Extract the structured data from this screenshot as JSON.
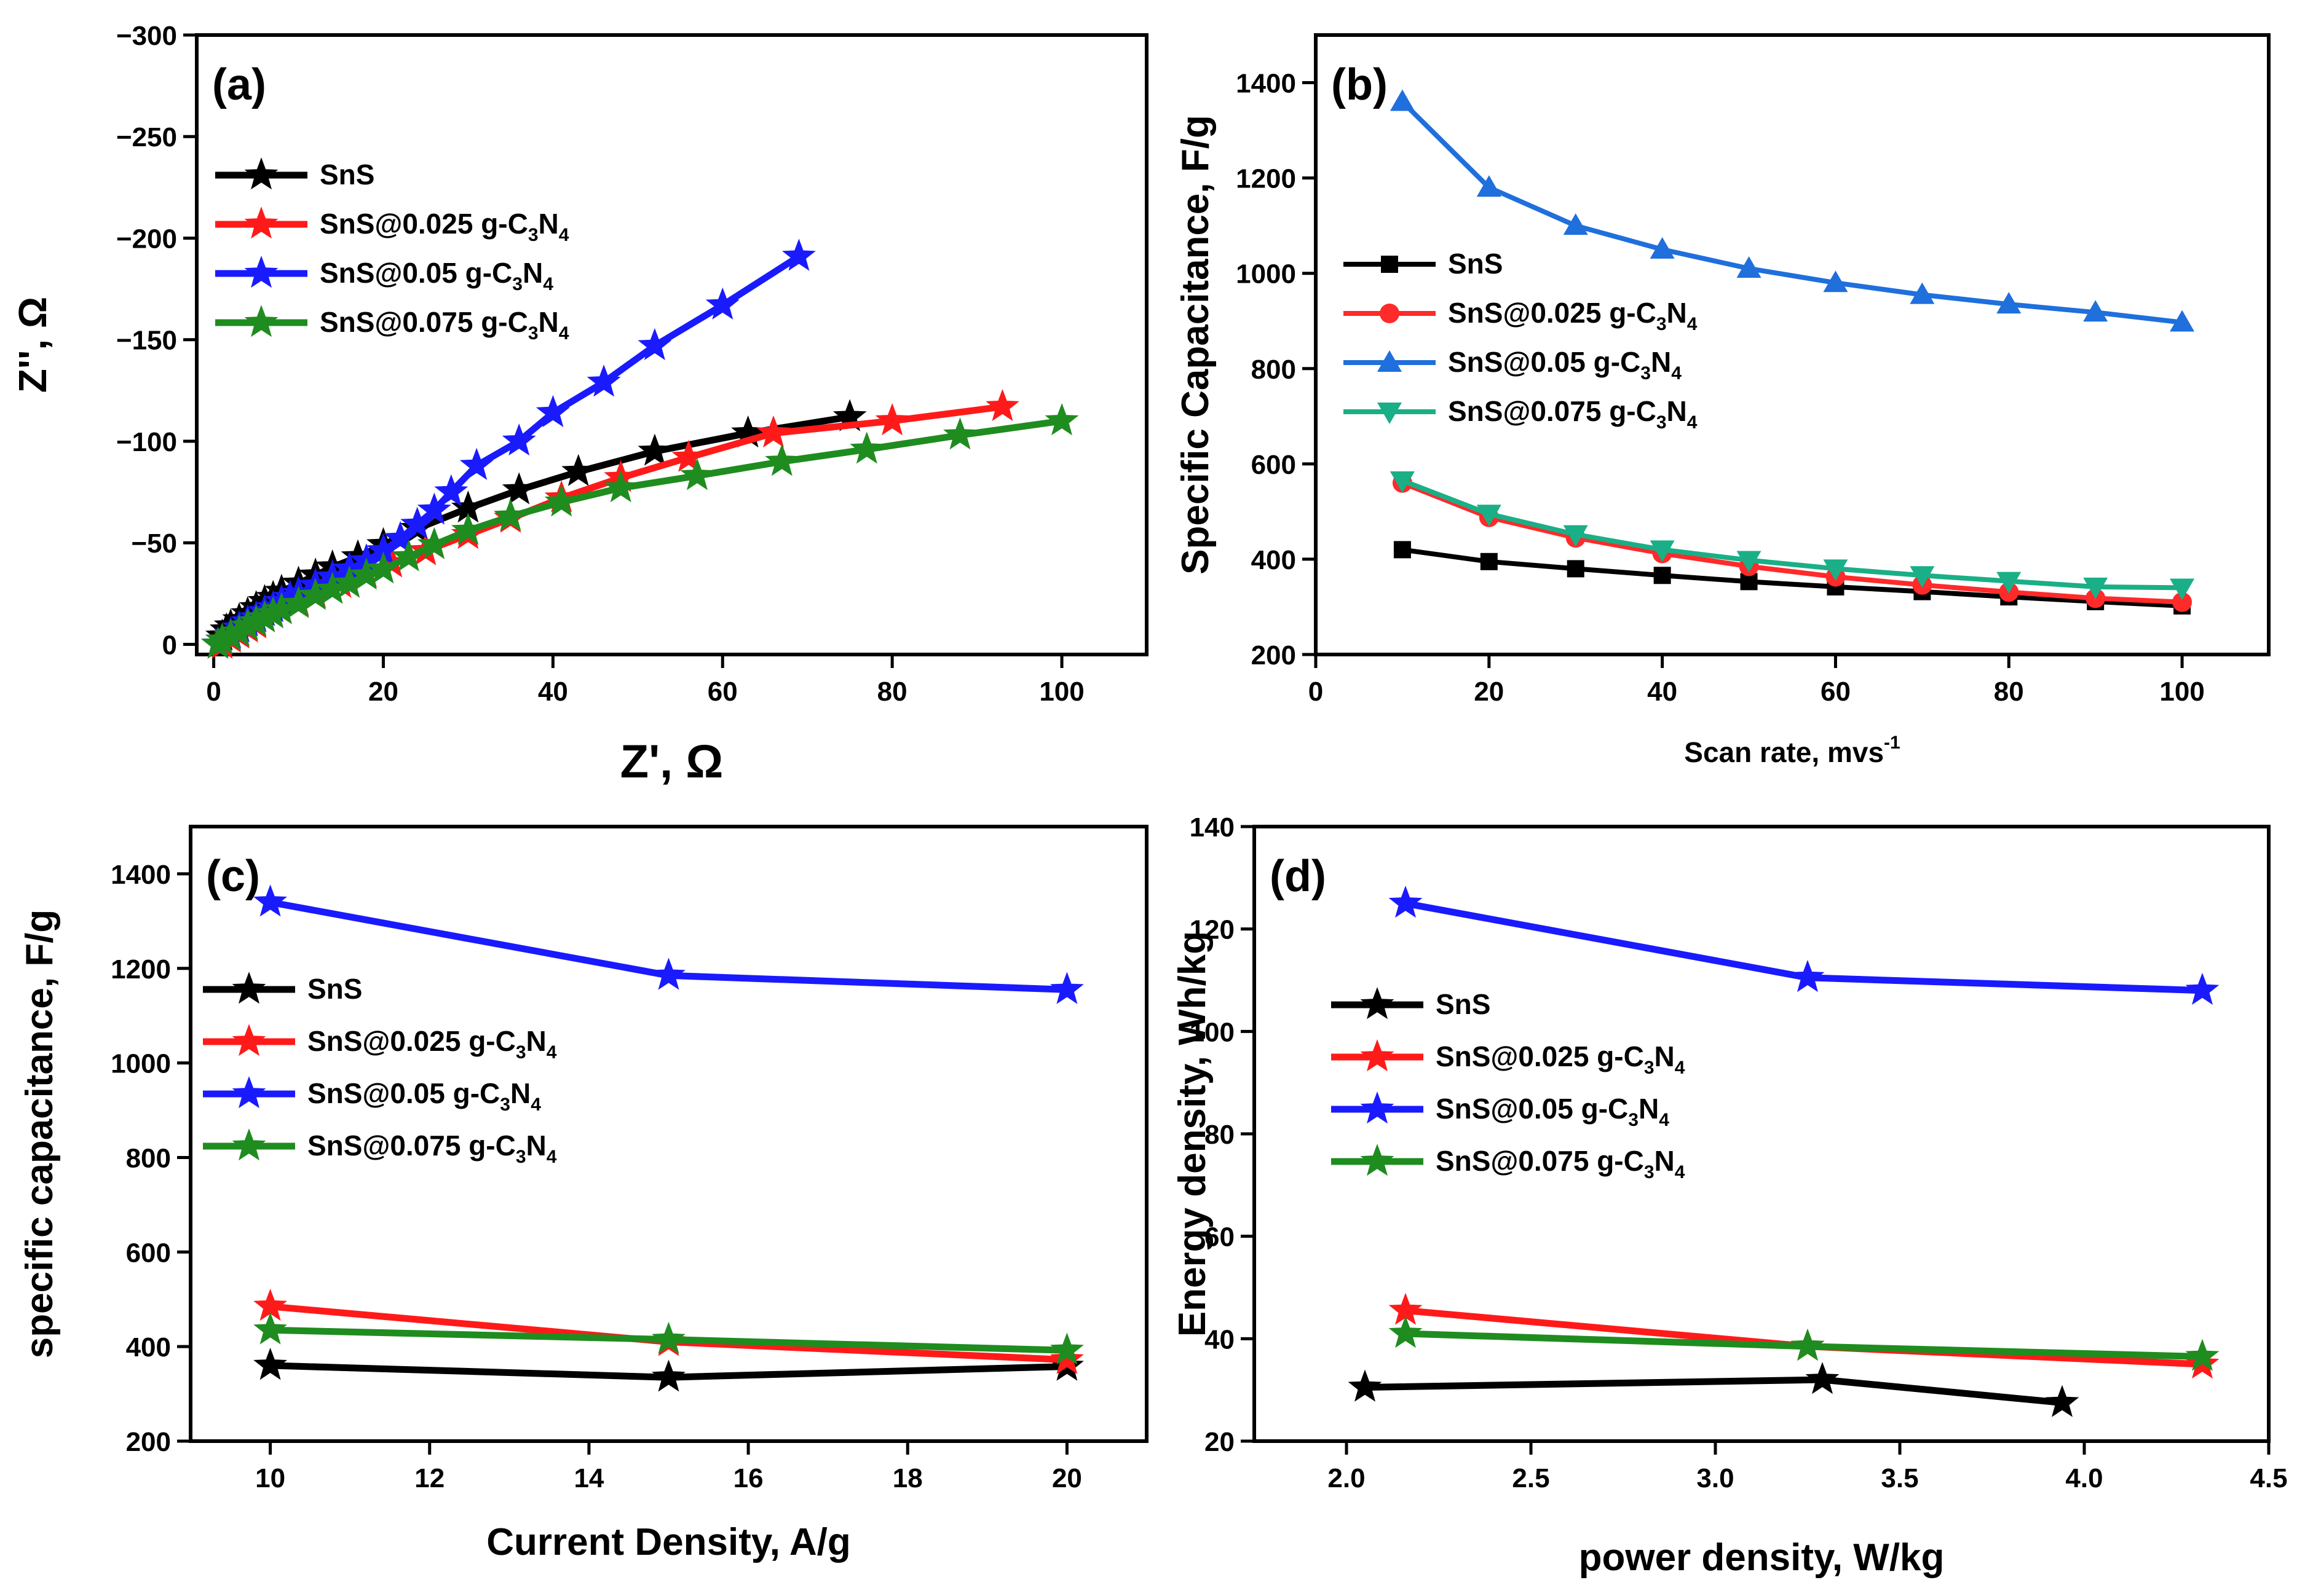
{
  "chart_data": [
    {
      "type": "scatter",
      "panel_label": "(a)",
      "xlabel": "Z', Ω",
      "ylabel": "Z'', Ω",
      "xlim": [
        -2,
        110
      ],
      "ylim": [
        5,
        -300
      ],
      "xticks": [
        "0",
        "20",
        "40",
        "60",
        "80",
        "100"
      ],
      "yticks": [
        "0",
        "−50",
        "−100",
        "−150",
        "−200",
        "−250",
        "−300"
      ],
      "legend": {
        "position": "top-left",
        "entries": [
          {
            "name": "SnS",
            "formula": false
          },
          {
            "name": "SnS@0.025 g-C",
            "formula": true
          },
          {
            "name": "SnS@0.05 g-C",
            "formula": true
          },
          {
            "name": "SnS@0.075 g-C",
            "formula": true
          }
        ]
      },
      "series": [
        {
          "name": "SnS",
          "color": "#000000",
          "marker": "star",
          "x": [
            0.5,
            1,
            1.5,
            2,
            3,
            4,
            5,
            6,
            7,
            8,
            10,
            12,
            14,
            17,
            20,
            24,
            30,
            36,
            43,
            52,
            63,
            75
          ],
          "y": [
            0,
            -4,
            -7,
            -9,
            -12,
            -15,
            -18,
            -21,
            -23,
            -26,
            -30,
            -34,
            -38,
            -43,
            -49,
            -57,
            -67,
            -76,
            -85,
            -95,
            -104,
            -112
          ]
        },
        {
          "name": "SnS@0.025",
          "color": "#ff1a1a",
          "marker": "star",
          "x": [
            1,
            2,
            3,
            4,
            5,
            6,
            7,
            8,
            10,
            12,
            15,
            18,
            21,
            25,
            30,
            35,
            41,
            48,
            56,
            66,
            80,
            93
          ],
          "y": [
            0,
            -3,
            -5,
            -8,
            -10,
            -13,
            -15,
            -17,
            -21,
            -25,
            -30,
            -35,
            -40,
            -46,
            -54,
            -62,
            -72,
            -82,
            -92,
            -104,
            -110,
            -117
          ]
        },
        {
          "name": "SnS@0.05",
          "color": "#1a1aff",
          "marker": "star",
          "x": [
            0.5,
            1,
            2,
            3,
            4,
            5,
            6,
            7,
            8,
            9,
            10,
            12,
            14,
            16,
            18,
            20,
            22,
            24,
            26,
            28,
            31,
            36,
            40,
            46,
            52,
            60,
            69
          ],
          "y": [
            0,
            -2,
            -5,
            -8,
            -11,
            -13,
            -16,
            -18,
            -21,
            -23,
            -25,
            -29,
            -33,
            -37,
            -41,
            -46,
            -52,
            -59,
            -66,
            -75,
            -88,
            -100,
            -114,
            -129,
            -147,
            -167,
            -191
          ]
        },
        {
          "name": "SnS@0.075",
          "color": "#1f8c1f",
          "marker": "star",
          "x": [
            0.5,
            1,
            2,
            3,
            4,
            5,
            6,
            7,
            8,
            10,
            12,
            14,
            16,
            18,
            20,
            23,
            26,
            30,
            35,
            41,
            48,
            57,
            67,
            77,
            88,
            100
          ],
          "y": [
            0,
            -2,
            -4,
            -6,
            -9,
            -11,
            -13,
            -15,
            -17,
            -20,
            -24,
            -27,
            -30,
            -34,
            -37,
            -43,
            -49,
            -56,
            -63,
            -70,
            -77,
            -83,
            -90,
            -96,
            -103,
            -110
          ]
        }
      ]
    },
    {
      "type": "line",
      "panel_label": "(b)",
      "xlabel": "Scan rate, mvs",
      "xlabel_sup": "-1",
      "ylabel": "Specific Capacitance, F/g",
      "xlim": [
        0,
        110
      ],
      "ylim": [
        200,
        1500
      ],
      "xticks": [
        "0",
        "20",
        "40",
        "60",
        "80",
        "100"
      ],
      "yticks": [
        "200",
        "400",
        "600",
        "800",
        "1000",
        "1200",
        "1400"
      ],
      "legend": {
        "position": "center-left",
        "entries": [
          {
            "name": "SnS",
            "formula": false
          },
          {
            "name": "SnS@0.025 g-C",
            "formula": true
          },
          {
            "name": "SnS@0.05 g-C",
            "formula": true
          },
          {
            "name": "SnS@0.075 g-C",
            "formula": true
          }
        ]
      },
      "x": [
        10,
        20,
        30,
        40,
        50,
        60,
        70,
        80,
        90,
        100
      ],
      "series": [
        {
          "name": "SnS",
          "color": "#000000",
          "marker": "square",
          "values": [
            420,
            395,
            380,
            366,
            353,
            342,
            332,
            321,
            311,
            302
          ]
        },
        {
          "name": "SnS@0.025",
          "color": "#ff2a2a",
          "marker": "circle",
          "values": [
            560,
            488,
            445,
            412,
            385,
            363,
            346,
            331,
            318,
            310
          ]
        },
        {
          "name": "SnS@0.05",
          "color": "#1f6fdc",
          "marker": "triangle-up",
          "values": [
            1360,
            1180,
            1100,
            1050,
            1010,
            980,
            955,
            935,
            918,
            897
          ]
        },
        {
          "name": "SnS@0.075",
          "color": "#1aaf86",
          "marker": "triangle-down",
          "values": [
            565,
            495,
            452,
            420,
            398,
            380,
            366,
            354,
            342,
            340
          ]
        }
      ]
    },
    {
      "type": "line",
      "panel_label": "(c)",
      "xlabel": "Current Density, A/g",
      "ylabel": "specific capacitance, F/g",
      "xlim": [
        9,
        21
      ],
      "ylim": [
        200,
        1500
      ],
      "xticks": [
        "10",
        "12",
        "14",
        "16",
        "18",
        "20"
      ],
      "yticks": [
        "200",
        "400",
        "600",
        "800",
        "1000",
        "1200",
        "1400"
      ],
      "legend": {
        "position": "center-left",
        "entries": [
          {
            "name": "SnS",
            "formula": false
          },
          {
            "name": "SnS@0.025 g-C",
            "formula": true
          },
          {
            "name": "SnS@0.05 g-C",
            "formula": true
          },
          {
            "name": "SnS@0.075 g-C",
            "formula": true
          }
        ]
      },
      "x": [
        10,
        15,
        20
      ],
      "series": [
        {
          "name": "SnS",
          "color": "#000000",
          "marker": "star",
          "values": [
            360,
            335,
            358
          ]
        },
        {
          "name": "SnS@0.025",
          "color": "#ff1a1a",
          "marker": "star",
          "values": [
            485,
            410,
            372
          ]
        },
        {
          "name": "SnS@0.05",
          "color": "#1a1aff",
          "marker": "star",
          "values": [
            1340,
            1185,
            1155
          ]
        },
        {
          "name": "SnS@0.075",
          "color": "#1f8c1f",
          "marker": "star",
          "values": [
            435,
            415,
            392
          ]
        }
      ]
    },
    {
      "type": "line",
      "panel_label": "(d)",
      "xlabel": "power density, W/kg",
      "ylabel": "Energy density, Wh/kg",
      "xlim": [
        1.75,
        4.5
      ],
      "ylim": [
        20,
        140
      ],
      "xticks": [
        "2.0",
        "2.5",
        "3.0",
        "3.5",
        "4.0",
        "4.5"
      ],
      "yticks": [
        "20",
        "40",
        "60",
        "80",
        "100",
        "120",
        "140"
      ],
      "legend": {
        "position": "center-left",
        "entries": [
          {
            "name": "SnS",
            "formula": false
          },
          {
            "name": "SnS@0.025 g-C",
            "formula": true
          },
          {
            "name": "SnS@0.05 g-C",
            "formula": true
          },
          {
            "name": "SnS@0.075 g-C",
            "formula": true
          }
        ]
      },
      "series": [
        {
          "name": "SnS",
          "color": "#000000",
          "marker": "star",
          "x": [
            2.05,
            3.29,
            3.94
          ],
          "values": [
            30.5,
            32,
            27.5
          ]
        },
        {
          "name": "SnS@0.025",
          "color": "#ff1a1a",
          "marker": "star",
          "x": [
            2.16,
            3.25,
            4.32
          ],
          "values": [
            45.5,
            38.5,
            35
          ]
        },
        {
          "name": "SnS@0.05",
          "color": "#1a1aff",
          "marker": "star",
          "x": [
            2.16,
            3.25,
            4.32
          ],
          "values": [
            125,
            110.5,
            108
          ]
        },
        {
          "name": "SnS@0.075",
          "color": "#1f8c1f",
          "marker": "star",
          "x": [
            2.16,
            3.25,
            4.32
          ],
          "values": [
            41,
            38.5,
            36.5
          ]
        }
      ]
    }
  ],
  "formula_parts": {
    "sub1": "3",
    "mid": "N",
    "sub2": "4"
  }
}
